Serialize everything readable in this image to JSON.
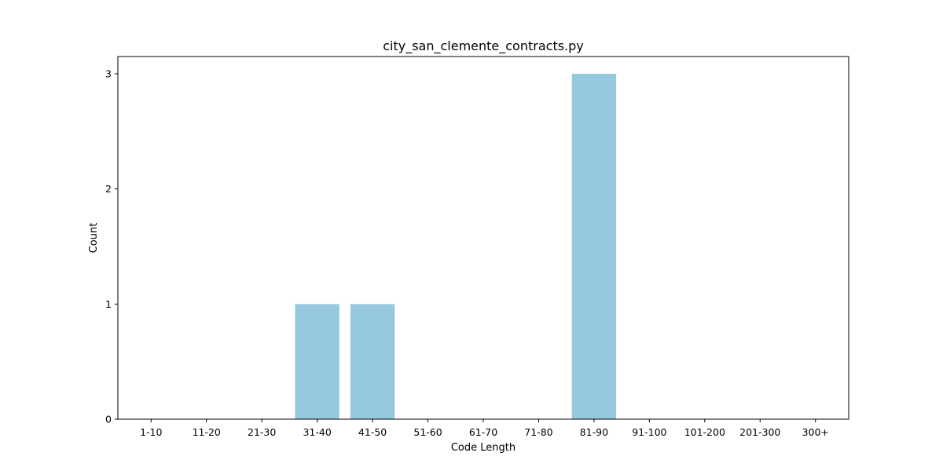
{
  "chart_data": {
    "type": "bar",
    "title": "city_san_clemente_contracts.py",
    "xlabel": "Code Length",
    "ylabel": "Count",
    "categories": [
      "1-10",
      "11-20",
      "21-30",
      "31-40",
      "41-50",
      "51-60",
      "61-70",
      "71-80",
      "81-90",
      "91-100",
      "101-200",
      "201-300",
      "300+"
    ],
    "values": [
      0,
      0,
      0,
      1,
      1,
      0,
      0,
      0,
      3,
      0,
      0,
      0,
      0
    ],
    "yticks": [
      0,
      1,
      2,
      3
    ],
    "ylim": [
      0,
      3.15
    ],
    "bar_color": "#96c9de",
    "grid": false,
    "legend": "none"
  }
}
